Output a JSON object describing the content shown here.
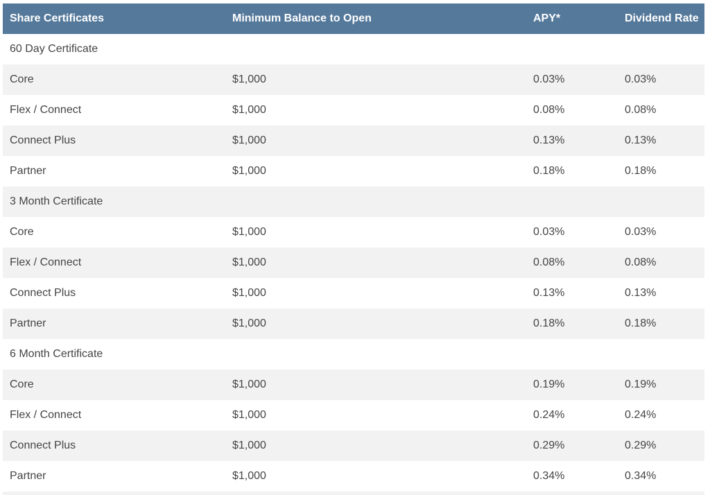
{
  "header": {
    "col1": "Share Certificates",
    "col2": "Minimum Balance to Open",
    "col3": "APY*",
    "col4": "Dividend Rate"
  },
  "rows": [
    {
      "c1": "60 Day Certificate",
      "c2": "",
      "c3": "",
      "c4": ""
    },
    {
      "c1": "Core",
      "c2": "$1,000",
      "c3": "0.03%",
      "c4": "0.03%"
    },
    {
      "c1": "Flex / Connect",
      "c2": "$1,000",
      "c3": "0.08%",
      "c4": "0.08%"
    },
    {
      "c1": "Connect Plus",
      "c2": "$1,000",
      "c3": "0.13%",
      "c4": "0.13%"
    },
    {
      "c1": "Partner",
      "c2": "$1,000",
      "c3": "0.18%",
      "c4": "0.18%"
    },
    {
      "c1": "3 Month Certificate",
      "c2": "",
      "c3": "",
      "c4": ""
    },
    {
      "c1": "Core",
      "c2": "$1,000",
      "c3": "0.03%",
      "c4": "0.03%"
    },
    {
      "c1": "Flex / Connect",
      "c2": "$1,000",
      "c3": "0.08%",
      "c4": "0.08%"
    },
    {
      "c1": "Connect Plus",
      "c2": "$1,000",
      "c3": "0.13%",
      "c4": "0.13%"
    },
    {
      "c1": "Partner",
      "c2": "$1,000",
      "c3": "0.18%",
      "c4": "0.18%"
    },
    {
      "c1": "6 Month Certificate",
      "c2": "",
      "c3": "",
      "c4": ""
    },
    {
      "c1": "Core",
      "c2": "$1,000",
      "c3": "0.19%",
      "c4": "0.19%"
    },
    {
      "c1": "Flex / Connect",
      "c2": "$1,000",
      "c3": "0.24%",
      "c4": "0.24%"
    },
    {
      "c1": "Connect Plus",
      "c2": "$1,000",
      "c3": "0.29%",
      "c4": "0.29%"
    },
    {
      "c1": "Partner",
      "c2": "$1,000",
      "c3": "0.34%",
      "c4": "0.34%"
    }
  ]
}
